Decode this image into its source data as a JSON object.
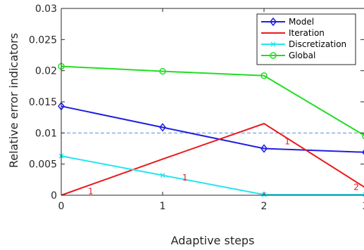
{
  "chart_data": {
    "type": "line",
    "title": "",
    "xlabel": "Adaptive steps",
    "ylabel": "Relative error indicators",
    "xlim": [
      0,
      3
    ],
    "ylim": [
      0,
      0.03
    ],
    "x_ticks": [
      "0",
      "1",
      "2"
    ],
    "y_ticks": [
      "0",
      "0.005",
      "0.01",
      "0.015",
      "0.02",
      "0.025",
      "0.03"
    ],
    "legend_position": "top-right",
    "grid": false,
    "x": [
      0,
      1,
      2,
      3
    ],
    "series": [
      {
        "name": "Model",
        "color": "#1f1fe0",
        "marker": "diamond",
        "values": [
          0.0143,
          0.0109,
          0.0075,
          0.0069
        ]
      },
      {
        "name": "Iteration",
        "color": "#e8191c",
        "marker": "none",
        "values": [
          0.0,
          0.0058,
          0.0115,
          0.0012
        ]
      },
      {
        "name": "Discretization",
        "color": "#22e6f0",
        "marker": "x",
        "values": [
          0.0063,
          0.0032,
          0.0001,
          0.0001
        ]
      },
      {
        "name": "Global",
        "color": "#22dd22",
        "marker": "circle",
        "values": [
          0.0207,
          0.0199,
          0.0192,
          0.0095
        ]
      }
    ],
    "reference_line": {
      "y": 0.01,
      "color": "#5a8fd0",
      "style": "dashed"
    },
    "annotations": [
      {
        "text": "1",
        "x": 0.29,
        "y": 0.0006
      },
      {
        "text": "1",
        "x": 1.22,
        "y": 0.0028
      },
      {
        "text": "1",
        "x": 2.23,
        "y": 0.0086
      },
      {
        "text": "2",
        "x": 2.91,
        "y": 0.0013
      }
    ]
  }
}
